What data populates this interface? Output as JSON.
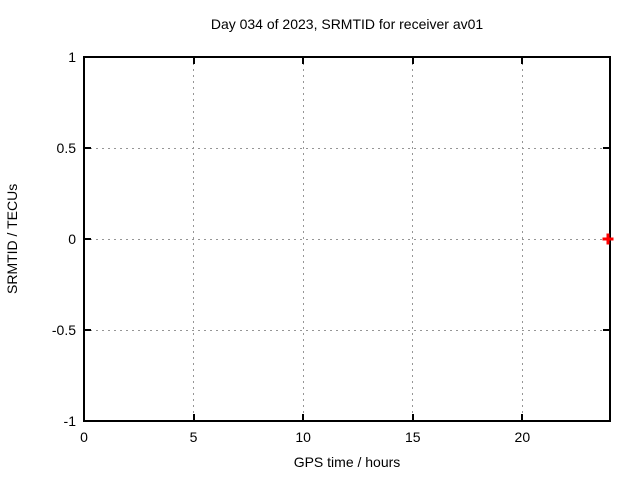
{
  "chart_data": {
    "type": "scatter",
    "title": "Day 034 of 2023, SRMTID for receiver av01",
    "xlabel": "GPS time / hours",
    "ylabel": "SRMTID / TECUs",
    "xlim": [
      0,
      24
    ],
    "ylim": [
      -1,
      1
    ],
    "xticks": [
      0,
      5,
      10,
      15,
      20
    ],
    "yticks": [
      -1,
      -0.5,
      0,
      0.5,
      1
    ],
    "grid": true,
    "legend": "none",
    "series": [
      {
        "name": "srmtid-points",
        "marker": "plus",
        "color": "#ff0000",
        "points": [
          {
            "x": 23.9,
            "y": 0
          }
        ]
      }
    ]
  },
  "colors": {
    "background": "#ffffff",
    "border": "#000000",
    "grid": "#969696",
    "text": "#000000"
  }
}
